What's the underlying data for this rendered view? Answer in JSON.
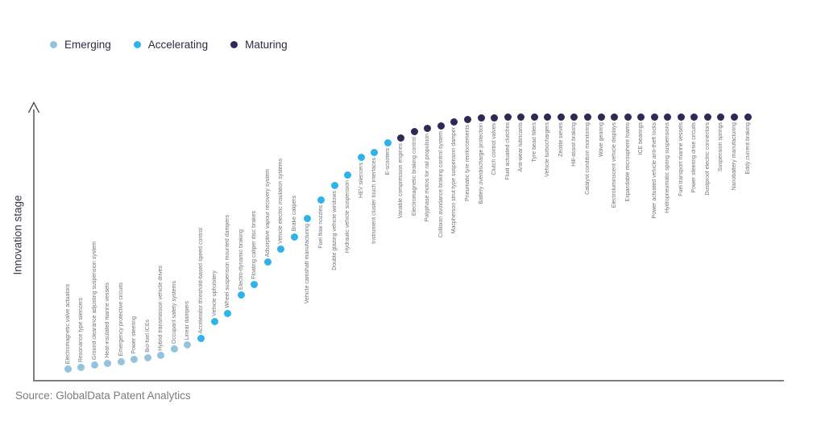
{
  "legend": [
    {
      "label": "Emerging",
      "stage": "emerging"
    },
    {
      "label": "Accelerating",
      "stage": "accelerating"
    },
    {
      "label": "Maturing",
      "stage": "maturing"
    }
  ],
  "source": "Source: GlobalData Patent Analytics",
  "chart_data": {
    "type": "scatter",
    "title": "",
    "xlabel": "",
    "ylabel": "Innovation stage",
    "grid": false,
    "legend_position": "top-left",
    "y_axis": {
      "kind": "qualitative-arrow",
      "range": [
        0,
        100
      ],
      "ticks": []
    },
    "x_axis": {
      "kind": "ordinal-rank-of-technology",
      "ticks": []
    },
    "stage_colors": {
      "emerging": "#94c3dd",
      "accelerating": "#2fb3e9",
      "maturing": "#2e2a58"
    },
    "axis_colors": {
      "y_line": "#3a3a3a",
      "x_line": "#7d7d7d"
    },
    "points": [
      {
        "label": "Electromagnetic valve actuators",
        "stage": "emerging",
        "score": 4.5
      },
      {
        "label": "Resonance type silencers",
        "stage": "emerging",
        "score": 5
      },
      {
        "label": "Ground clearance adjusting suspension system",
        "stage": "emerging",
        "score": 6
      },
      {
        "label": "Heat-insulated marine vessels",
        "stage": "emerging",
        "score": 6.7
      },
      {
        "label": "Emergency protective circuits",
        "stage": "emerging",
        "score": 7.3
      },
      {
        "label": "Power steering",
        "stage": "emerging",
        "score": 8.2
      },
      {
        "label": "Bio-fuel ICEs",
        "stage": "emerging",
        "score": 8.6
      },
      {
        "label": "Hybrid transmission vehicle drives",
        "stage": "emerging",
        "score": 9.5
      },
      {
        "label": "Occupant safety systems",
        "stage": "emerging",
        "score": 12
      },
      {
        "label": "Linear dampers",
        "stage": "emerging",
        "score": 13.5
      },
      {
        "label": "Accelerator threshold-based speed control",
        "stage": "accelerating",
        "score": 16
      },
      {
        "label": "Vehicle upholstery",
        "stage": "accelerating",
        "score": 22.5
      },
      {
        "label": "Wheel suspension mounted dampers",
        "stage": "accelerating",
        "score": 25.5
      },
      {
        "label": "Electro-dynamic braking",
        "stage": "accelerating",
        "score": 32.5
      },
      {
        "label": "Floating caliper disc brakes",
        "stage": "accelerating",
        "score": 36.5
      },
      {
        "label": "Adsorptive vapour recovery system",
        "stage": "accelerating",
        "score": 45
      },
      {
        "label": "Vehicle electric insulation systems",
        "stage": "accelerating",
        "score": 50
      },
      {
        "label": "Brake calipers",
        "stage": "accelerating",
        "score": 54.5
      },
      {
        "label": "Vehicle camshaft manufacturing",
        "stage": "accelerating",
        "score": 61.5
      },
      {
        "label": "Fuel flow nozzles",
        "stage": "accelerating",
        "score": 68.5
      },
      {
        "label": "Double glazing vehicle windows",
        "stage": "accelerating",
        "score": 74
      },
      {
        "label": "Hydraulic vehicle suspension",
        "stage": "accelerating",
        "score": 78
      },
      {
        "label": "HEV silencers",
        "stage": "accelerating",
        "score": 84.5
      },
      {
        "label": "Instrument cluster touch interfaces",
        "stage": "accelerating",
        "score": 86.5
      },
      {
        "label": "E-scooters",
        "stage": "accelerating",
        "score": 90
      },
      {
        "label": "Variable compression engines",
        "stage": "maturing",
        "score": 92
      },
      {
        "label": "Electromagnetic braking control",
        "stage": "maturing",
        "score": 94.5
      },
      {
        "label": "Polyphase motos for rail propulsion",
        "stage": "maturing",
        "score": 95.5
      },
      {
        "label": "Collision avoidance braking control system",
        "stage": "maturing",
        "score": 96.6
      },
      {
        "label": "Macpherson strut type suspension damper",
        "stage": "maturing",
        "score": 97.9
      },
      {
        "label": "Pneumatic tyre reinforcements",
        "stage": "maturing",
        "score": 99
      },
      {
        "label": "Battery overdischarge protection",
        "stage": "maturing",
        "score": 99.4
      },
      {
        "label": "Clutch control valves",
        "stage": "maturing",
        "score": 99.4
      },
      {
        "label": "Fluid actuated clutches",
        "stage": "maturing",
        "score": 99.7
      },
      {
        "label": "Anti-wear lubricants",
        "stage": "maturing",
        "score": 99.7
      },
      {
        "label": "Tyre bead fillers",
        "stage": "maturing",
        "score": 100
      },
      {
        "label": "Vehicle turbochargers",
        "stage": "maturing",
        "score": 100
      },
      {
        "label": "Zeolite sieves",
        "stage": "maturing",
        "score": 100
      },
      {
        "label": "Hill-assist braking",
        "stage": "maturing",
        "score": 100
      },
      {
        "label": "Catalyst condition monitoring",
        "stage": "maturing",
        "score": 100
      },
      {
        "label": "Wave gearing",
        "stage": "maturing",
        "score": 100
      },
      {
        "label": "Electroluminscent vehicle displays",
        "stage": "maturing",
        "score": 100
      },
      {
        "label": "Expandable microsphere foams",
        "stage": "maturing",
        "score": 100
      },
      {
        "label": "ICE bearings",
        "stage": "maturing",
        "score": 100
      },
      {
        "label": "Power actuated vehicle anti-theft locks",
        "stage": "maturing",
        "score": 100
      },
      {
        "label": "Hydropneumatic spring suspensions",
        "stage": "maturing",
        "score": 100
      },
      {
        "label": "Fuel transport marine vessels",
        "stage": "maturing",
        "score": 100
      },
      {
        "label": "Power steering drive circuits",
        "stage": "maturing",
        "score": 100
      },
      {
        "label": "Dustproof electric connectors",
        "stage": "maturing",
        "score": 100
      },
      {
        "label": "Suspension springs",
        "stage": "maturing",
        "score": 100
      },
      {
        "label": "Nanobattery manufacturing",
        "stage": "maturing",
        "score": 100
      },
      {
        "label": "Eddy current braking",
        "stage": "maturing",
        "score": 100
      }
    ]
  }
}
